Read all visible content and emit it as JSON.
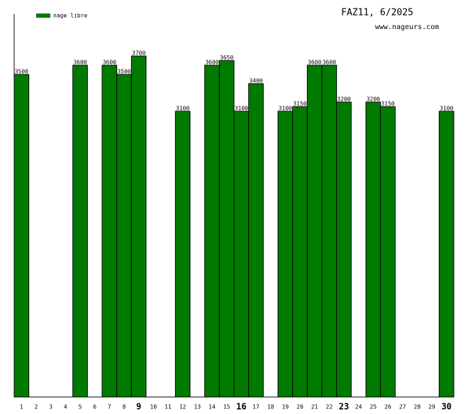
{
  "chart_data": {
    "type": "bar",
    "title": "FAZ11, 6/2025",
    "subtitle": "www.nageurs.com",
    "categories": [
      "1",
      "2",
      "3",
      "4",
      "5",
      "6",
      "7",
      "8",
      "9",
      "10",
      "11",
      "12",
      "13",
      "14",
      "15",
      "16",
      "17",
      "18",
      "19",
      "20",
      "21",
      "22",
      "23",
      "24",
      "25",
      "26",
      "27",
      "28",
      "29",
      "30"
    ],
    "series": [
      {
        "name": "nage libre",
        "color": "#007b00",
        "values": [
          3500,
          null,
          null,
          null,
          3600,
          null,
          3600,
          3500,
          3700,
          null,
          null,
          3100,
          null,
          3600,
          3650,
          3100,
          3400,
          null,
          3100,
          3150,
          3600,
          3600,
          3200,
          null,
          3200,
          3150,
          null,
          null,
          null,
          3100
        ]
      }
    ],
    "emphasized_categories": [
      8,
      15,
      22,
      29
    ],
    "ylim": [
      0,
      4000
    ],
    "legend": "top-left",
    "grid": false
  }
}
